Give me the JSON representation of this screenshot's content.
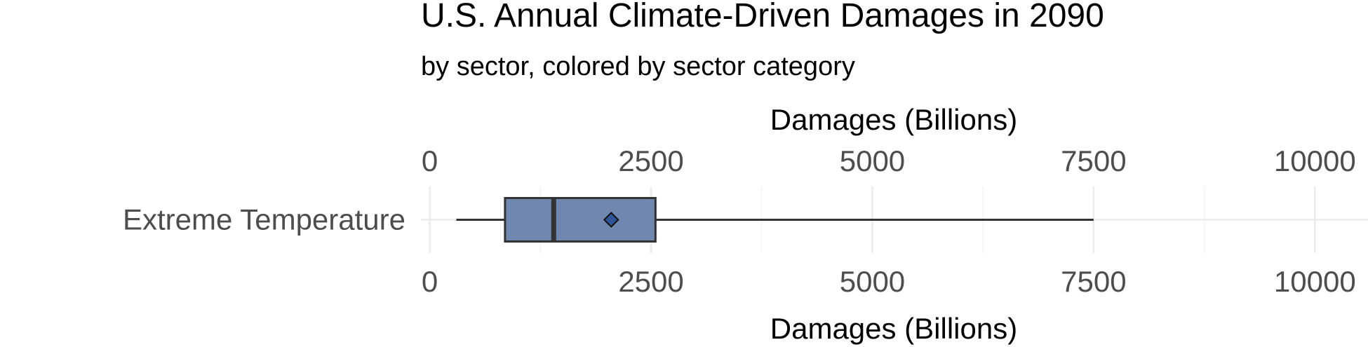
{
  "chart_data": {
    "type": "boxplot",
    "title": "U.S. Annual Climate-Driven Damages in 2090",
    "subtitle": "by sector, colored by sector category",
    "xlabel_top": "Damages (Billions)",
    "xlabel_bottom": "Damages (Billions)",
    "xlim": [
      -100,
      10600
    ],
    "xticks": [
      0,
      2500,
      5000,
      7500,
      10000
    ],
    "tick_labels": [
      "0",
      "2500",
      "5000",
      "7500",
      "10000"
    ],
    "grid": true,
    "categories": [
      "Extreme Temperature"
    ],
    "series": [
      {
        "category": "Extreme Temperature",
        "whisker_low": 300,
        "q1": 850,
        "median": 1400,
        "q3": 2550,
        "whisker_high": 7500,
        "mean": 2050
      }
    ],
    "colors": {
      "box_fill": "#7088b0",
      "box_stroke": "#333333",
      "mean_fill": "#2f5597",
      "grid_major": "#ebebeb",
      "grid_minor": "#f4f4f4"
    }
  }
}
